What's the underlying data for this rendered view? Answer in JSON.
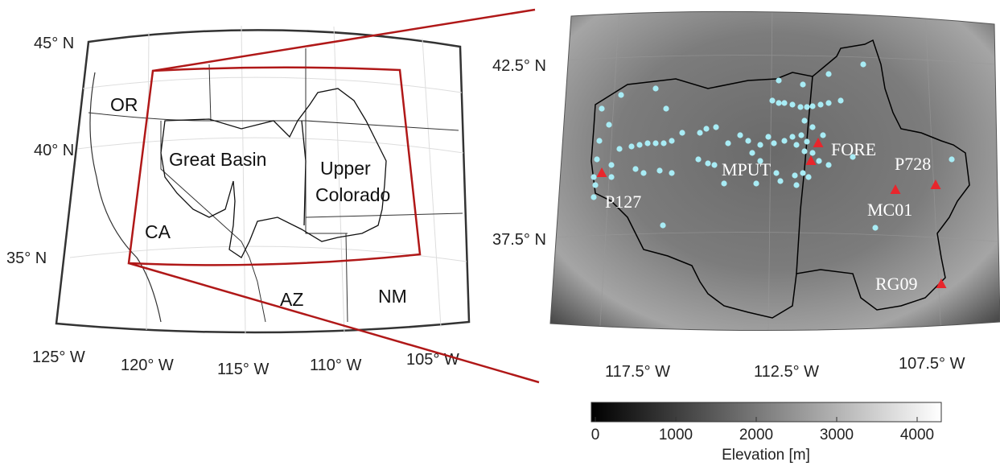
{
  "left_map": {
    "lat_labels": [
      "45° N",
      "40° N",
      "35° N"
    ],
    "lon_labels": [
      "125° W",
      "120° W",
      "115° W",
      "110° W",
      "105° W"
    ],
    "state_labels": [
      "OR",
      "CA",
      "AZ",
      "NM"
    ],
    "basin_labels": {
      "great_basin": "Great Basin",
      "upper_colorado": [
        "Upper",
        "Colorado"
      ]
    }
  },
  "right_map": {
    "lat_labels": [
      "42.5° N",
      "37.5° N"
    ],
    "lon_labels": [
      "117.5° W",
      "112.5° W",
      "107.5° W"
    ],
    "stations": [
      "P127",
      "MPUT",
      "FORE",
      "P728",
      "MC01",
      "RG09"
    ]
  },
  "colorbar": {
    "label": "Elevation [m]",
    "lim": [
      -50,
      4300
    ],
    "ticks": [
      0,
      1000,
      2000,
      3000,
      4000
    ]
  }
}
